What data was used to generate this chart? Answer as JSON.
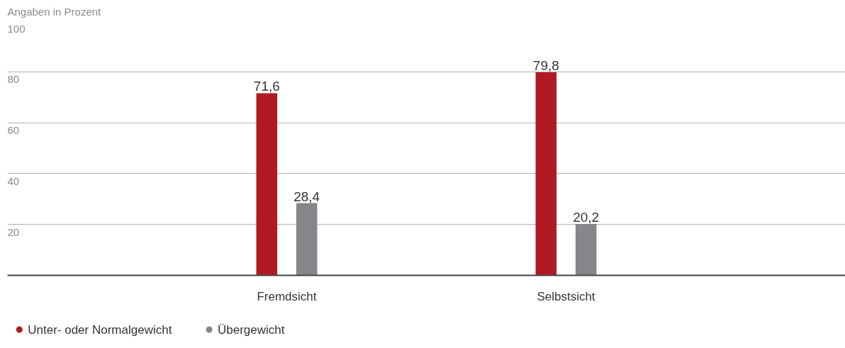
{
  "chart_data": {
    "type": "bar",
    "ylabel": "Angaben in Prozent",
    "categories": [
      "Fremdsicht",
      "Selbstsicht"
    ],
    "series": [
      {
        "name": "Unter- oder Normalgewicht",
        "color": "#b01a22",
        "values": [
          71.6,
          79.8
        ],
        "value_labels": [
          "71,6",
          "79,8"
        ]
      },
      {
        "name": "Übergewicht",
        "color": "#86868a",
        "values": [
          28.4,
          20.2
        ],
        "value_labels": [
          "28,4",
          "20,2"
        ]
      }
    ],
    "ylim": [
      0,
      100
    ],
    "yticks": [
      20,
      40,
      60,
      80,
      100
    ],
    "grid": "y",
    "legend": "bottom left"
  }
}
